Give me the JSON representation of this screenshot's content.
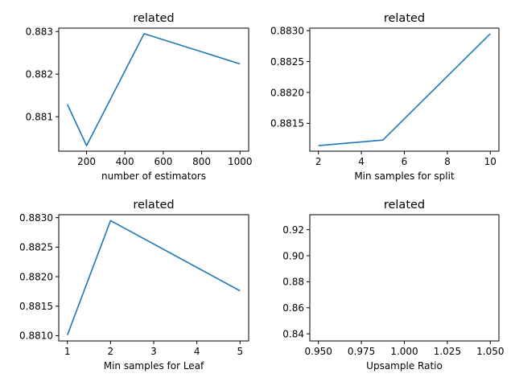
{
  "colors": {
    "series": "#1f77b4"
  },
  "chart_data": [
    {
      "type": "line",
      "title": "related",
      "xlabel": "number of estimators",
      "ylabel": "",
      "x": [
        100,
        200,
        500,
        1000
      ],
      "series": [
        {
          "values": [
            0.88129,
            0.88032,
            0.88295,
            0.88224
          ]
        }
      ],
      "xlim": [
        55,
        1045
      ],
      "ylim": [
        0.88019,
        0.88308
      ],
      "xticks": [
        200,
        400,
        600,
        800,
        1000
      ],
      "xtick_labels": [
        "200",
        "400",
        "600",
        "800",
        "1000"
      ],
      "yticks": [
        0.881,
        0.882,
        0.883
      ],
      "ytick_labels": [
        "0.881",
        "0.882",
        "0.883"
      ],
      "grid": false
    },
    {
      "type": "line",
      "title": "related",
      "xlabel": "Min samples for split",
      "ylabel": "",
      "x": [
        2,
        5,
        10
      ],
      "series": [
        {
          "values": [
            0.88114,
            0.88123,
            0.88295
          ]
        }
      ],
      "xlim": [
        1.6,
        10.4
      ],
      "ylim": [
        0.88105,
        0.88304
      ],
      "xticks": [
        2,
        4,
        6,
        8,
        10
      ],
      "xtick_labels": [
        "2",
        "4",
        "6",
        "8",
        "10"
      ],
      "yticks": [
        0.8815,
        0.882,
        0.8825,
        0.883
      ],
      "ytick_labels": [
        "0.8815",
        "0.8820",
        "0.8825",
        "0.8830"
      ],
      "grid": false
    },
    {
      "type": "line",
      "title": "related",
      "xlabel": "Min samples for Leaf",
      "ylabel": "",
      "x": [
        1,
        2,
        5
      ],
      "series": [
        {
          "values": [
            0.88101,
            0.88295,
            0.88176
          ]
        }
      ],
      "xlim": [
        0.8,
        5.2
      ],
      "ylim": [
        0.88091,
        0.88305
      ],
      "xticks": [
        1,
        2,
        3,
        4,
        5
      ],
      "xtick_labels": [
        "1",
        "2",
        "3",
        "4",
        "5"
      ],
      "yticks": [
        0.881,
        0.8815,
        0.882,
        0.8825,
        0.883
      ],
      "ytick_labels": [
        "0.8810",
        "0.8815",
        "0.8820",
        "0.8825",
        "0.8830"
      ],
      "grid": false
    },
    {
      "type": "line",
      "title": "related",
      "xlabel": "Upsample Ratio",
      "ylabel": "",
      "x": [],
      "series": [
        {
          "values": []
        }
      ],
      "xlim": [
        0.945,
        1.055
      ],
      "ylim": [
        0.8345,
        0.9315
      ],
      "xticks": [
        0.95,
        0.975,
        1.0,
        1.025,
        1.05
      ],
      "xtick_labels": [
        "0.950",
        "0.975",
        "1.000",
        "1.025",
        "1.050"
      ],
      "yticks": [
        0.84,
        0.86,
        0.88,
        0.9,
        0.92
      ],
      "ytick_labels": [
        "0.84",
        "0.86",
        "0.88",
        "0.90",
        "0.92"
      ],
      "grid": false
    }
  ]
}
